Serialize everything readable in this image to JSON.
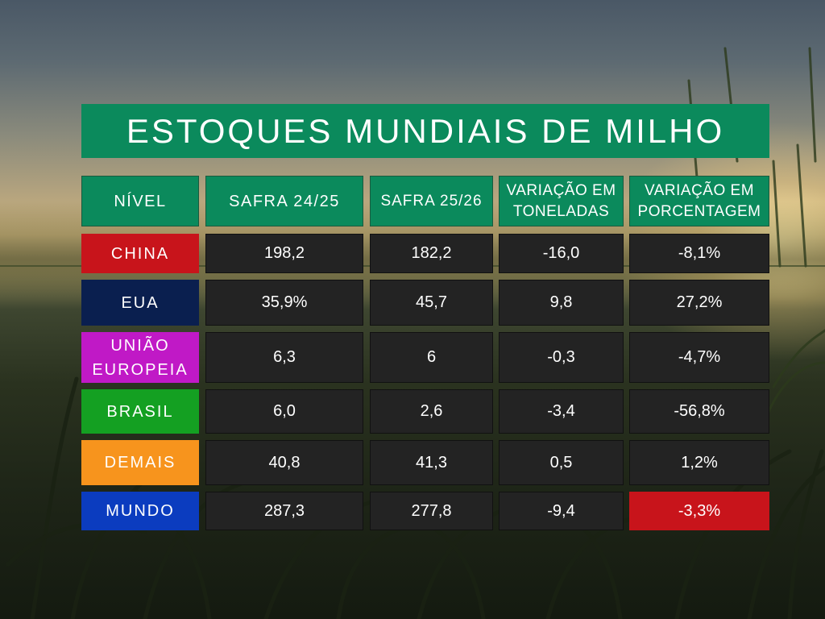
{
  "chart_data": {
    "type": "table",
    "title": "ESTOQUES MUNDIAIS DE MILHO",
    "columns": [
      "NÍVEL",
      "SAFRA 24/25",
      "SAFRA 25/26",
      "VARIAÇÃO EM TONELADAS",
      "VARIAÇÃO EM PORCENTAGEM"
    ],
    "rows": [
      {
        "nivel": "CHINA",
        "safra_24_25": "198,2",
        "safra_25_26": "182,2",
        "var_ton": "-16,0",
        "var_pct": "-8,1%"
      },
      {
        "nivel": "EUA",
        "safra_24_25": "35,9%",
        "safra_25_26": "45,7",
        "var_ton": "9,8",
        "var_pct": "27,2%"
      },
      {
        "nivel": "UNIÃO EUROPEIA",
        "safra_24_25": "6,3",
        "safra_25_26": "6",
        "var_ton": "-0,3",
        "var_pct": "-4,7%"
      },
      {
        "nivel": "BRASIL",
        "safra_24_25": "6,0",
        "safra_25_26": "2,6",
        "var_ton": "-3,4",
        "var_pct": "-56,8%"
      },
      {
        "nivel": "DEMAIS",
        "safra_24_25": "40,8",
        "safra_25_26": "41,3",
        "var_ton": "0,5",
        "var_pct": "1,2%"
      },
      {
        "nivel": "MUNDO",
        "safra_24_25": "287,3",
        "safra_25_26": "277,8",
        "var_ton": "-9,4",
        "var_pct": "-3,3%"
      }
    ]
  },
  "header": {
    "title": "ESTOQUES MUNDIAIS DE MILHO",
    "col_nivel": "NÍVEL",
    "col_safra_24_25": "SAFRA 24/25",
    "col_safra_25_26": "SAFRA 25/26",
    "col_var_ton_line1": "VARIAÇÃO EM",
    "col_var_ton_line2": "TONELADAS",
    "col_var_pct_line1": "VARIAÇÃO EM",
    "col_var_pct_line2": "PORCENTAGEM"
  },
  "rows": [
    {
      "nivel_lines": [
        "CHINA"
      ],
      "safra_24_25": "198,2",
      "safra_25_26": "182,2",
      "var_ton": "-16,0",
      "var_pct": "-8,1%",
      "level_bg": "#c8141b",
      "level_fg": "#ffffff"
    },
    {
      "nivel_lines": [
        "EUA"
      ],
      "safra_24_25": "35,9%",
      "safra_25_26": "45,7",
      "var_ton": "9,8",
      "var_pct": "27,2%",
      "level_bg": "#0a1f4f",
      "level_fg": "#ffffff"
    },
    {
      "nivel_lines": [
        "UNIÃO",
        "EUROPEIA"
      ],
      "safra_24_25": "6,3",
      "safra_25_26": "6",
      "var_ton": "-0,3",
      "var_pct": "-4,7%",
      "level_bg": "#c019c6",
      "level_fg": "#ffffff"
    },
    {
      "nivel_lines": [
        "BRASIL"
      ],
      "safra_24_25": "6,0",
      "safra_25_26": "2,6",
      "var_ton": "-3,4",
      "var_pct": "-56,8%",
      "level_bg": "#14a022",
      "level_fg": "#ffffff"
    },
    {
      "nivel_lines": [
        "DEMAIS"
      ],
      "safra_24_25": "40,8",
      "safra_25_26": "41,3",
      "var_ton": "0,5",
      "var_pct": "1,2%",
      "level_bg": "#f7941d",
      "level_fg": "#ffffff"
    },
    {
      "nivel_lines": [
        "MUNDO"
      ],
      "safra_24_25": "287,3",
      "safra_25_26": "277,8",
      "var_ton": "-9,4",
      "var_pct": "-3,3%",
      "level_bg": "#0b3cbf",
      "level_fg": "#ffffff",
      "highlight_pct_bg": "#c8141b"
    }
  ],
  "colors": {
    "header_green": "#0b8a5c",
    "cell_dark": "#232323",
    "highlight_red": "#c8141b"
  }
}
